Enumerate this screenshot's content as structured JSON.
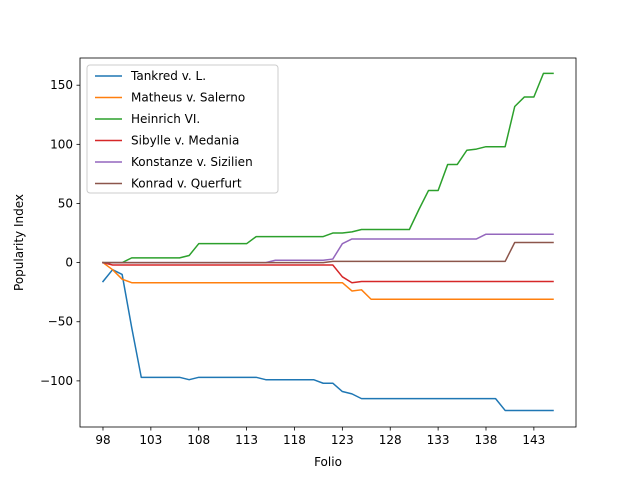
{
  "chart_data": {
    "type": "line",
    "title": "",
    "xlabel": "Folio",
    "ylabel": "Popularity Index",
    "xlim": [
      95.6,
      147.4
    ],
    "ylim": [
      -139,
      173
    ],
    "xticks": [
      98,
      103,
      108,
      113,
      118,
      123,
      128,
      133,
      138,
      143
    ],
    "yticks": [
      -100,
      -50,
      0,
      50,
      100,
      150
    ],
    "x": [
      98,
      99,
      100,
      101,
      102,
      103,
      104,
      105,
      106,
      107,
      108,
      109,
      110,
      111,
      112,
      113,
      114,
      115,
      116,
      117,
      118,
      119,
      120,
      121,
      122,
      123,
      124,
      125,
      126,
      127,
      128,
      129,
      130,
      131,
      132,
      133,
      134,
      135,
      136,
      137,
      138,
      139,
      140,
      141,
      142,
      143,
      144,
      145
    ],
    "legend_position": "upper left",
    "grid": false,
    "series": [
      {
        "name": "Tankred v. L.",
        "color": "#1f77b4",
        "values": [
          -16,
          -6,
          -10,
          -55,
          -97,
          -97,
          -97,
          -97,
          -97,
          -99,
          -97,
          -97,
          -97,
          -97,
          -97,
          -97,
          -97,
          -99,
          -99,
          -99,
          -99,
          -99,
          -99,
          -102,
          -102,
          -109,
          -111,
          -115,
          -115,
          -115,
          -115,
          -115,
          -115,
          -115,
          -115,
          -115,
          -115,
          -115,
          -115,
          -115,
          -115,
          -115,
          -125,
          -125,
          -125,
          -125,
          -125,
          -125
        ]
      },
      {
        "name": "Matheus v. Salerno",
        "color": "#ff7f0e",
        "values": [
          0,
          -6,
          -14,
          -17,
          -17,
          -17,
          -17,
          -17,
          -17,
          -17,
          -17,
          -17,
          -17,
          -17,
          -17,
          -17,
          -17,
          -17,
          -17,
          -17,
          -17,
          -17,
          -17,
          -17,
          -17,
          -17,
          -24,
          -23,
          -31,
          -31,
          -31,
          -31,
          -31,
          -31,
          -31,
          -31,
          -31,
          -31,
          -31,
          -31,
          -31,
          -31,
          -31,
          -31,
          -31,
          -31,
          -31,
          -31
        ]
      },
      {
        "name": "Heinrich VI.",
        "color": "#2ca02c",
        "values": [
          0,
          0,
          0,
          4,
          4,
          4,
          4,
          4,
          4,
          6,
          16,
          16,
          16,
          16,
          16,
          16,
          22,
          22,
          22,
          22,
          22,
          22,
          22,
          22,
          25,
          25,
          26,
          28,
          28,
          28,
          28,
          28,
          28,
          45,
          61,
          61,
          83,
          83,
          95,
          96,
          98,
          98,
          98,
          132,
          140,
          140,
          160,
          160
        ]
      },
      {
        "name": "Sibylle v. Medania",
        "color": "#d62728",
        "values": [
          0,
          -2,
          -2,
          -2,
          -2,
          -2,
          -2,
          -2,
          -2,
          -2,
          -2,
          -2,
          -2,
          -2,
          -2,
          -2,
          -2,
          -2,
          -2,
          -2,
          -2,
          -2,
          -2,
          -2,
          -2,
          -12,
          -17,
          -16,
          -16,
          -16,
          -16,
          -16,
          -16,
          -16,
          -16,
          -16,
          -16,
          -16,
          -16,
          -16,
          -16,
          -16,
          -16,
          -16,
          -16,
          -16,
          -16,
          -16
        ]
      },
      {
        "name": "Konstanze v. Sizilien",
        "color": "#9467bd",
        "values": [
          0,
          0,
          0,
          0,
          0,
          0,
          0,
          0,
          0,
          0,
          0,
          0,
          0,
          0,
          0,
          0,
          0,
          0,
          2,
          2,
          2,
          2,
          2,
          2,
          3,
          16,
          20,
          20,
          20,
          20,
          20,
          20,
          20,
          20,
          20,
          20,
          20,
          20,
          20,
          20,
          24,
          24,
          24,
          24,
          24,
          24,
          24,
          24
        ]
      },
      {
        "name": "Konrad v. Querfurt",
        "color": "#8c564b",
        "values": [
          0,
          0,
          0,
          0,
          0,
          0,
          0,
          0,
          0,
          0,
          0,
          0,
          0,
          0,
          0,
          0,
          0,
          0,
          0,
          0,
          0,
          0,
          0,
          0,
          1,
          1,
          1,
          1,
          1,
          1,
          1,
          1,
          1,
          1,
          1,
          1,
          1,
          1,
          1,
          1,
          1,
          1,
          1,
          17,
          17,
          17,
          17,
          17
        ]
      }
    ]
  }
}
